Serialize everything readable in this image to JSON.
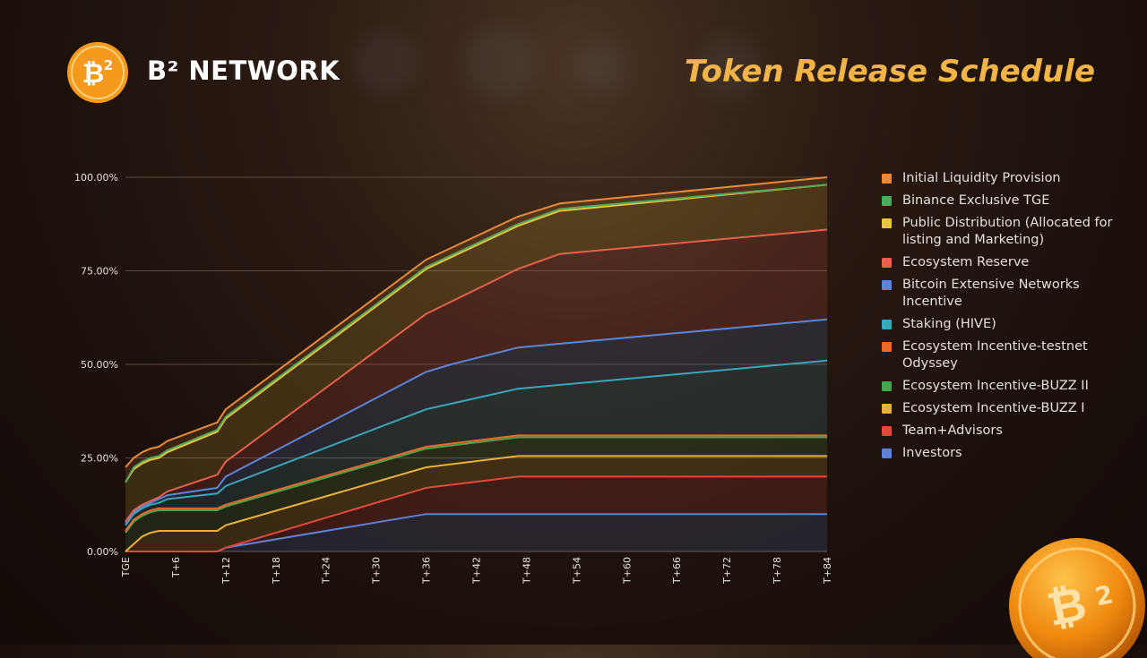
{
  "header": {
    "brand": "B² NETWORK",
    "title": "Token Release Schedule"
  },
  "colors": {
    "title": "#f3b447",
    "coin": "#f59a1c"
  },
  "chart_data": {
    "type": "area",
    "stacked": true,
    "title": "Token Release Schedule",
    "xlabel": "",
    "ylabel": "",
    "x_range": [
      0,
      84
    ],
    "ylim": [
      0,
      100
    ],
    "grid": true,
    "legend_position": "right",
    "y_ticks": [
      "0.00%",
      "25.00%",
      "50.00%",
      "75.00%",
      "100.00%"
    ],
    "x_ticks": [
      {
        "x": 0,
        "label": "TGE"
      },
      {
        "x": 6,
        "label": "T+6"
      },
      {
        "x": 12,
        "label": "T+12"
      },
      {
        "x": 18,
        "label": "T+18"
      },
      {
        "x": 24,
        "label": "T+24"
      },
      {
        "x": 30,
        "label": "T+30"
      },
      {
        "x": 36,
        "label": "T+36"
      },
      {
        "x": 42,
        "label": "T+42"
      },
      {
        "x": 48,
        "label": "T+48"
      },
      {
        "x": 54,
        "label": "T+54"
      },
      {
        "x": 60,
        "label": "T+60"
      },
      {
        "x": 66,
        "label": "T+66"
      },
      {
        "x": 72,
        "label": "T+72"
      },
      {
        "x": 78,
        "label": "T+78"
      },
      {
        "x": 84,
        "label": "T+84"
      }
    ],
    "series": [
      {
        "name": "Investors",
        "color": "#5b82d6",
        "points": [
          [
            0,
            0
          ],
          [
            11,
            0
          ],
          [
            12,
            1
          ],
          [
            36,
            10
          ],
          [
            84,
            10
          ]
        ]
      },
      {
        "name": "Team+Advisors",
        "color": "#e04a3c",
        "points": [
          [
            0,
            0
          ],
          [
            11,
            0
          ],
          [
            12,
            1
          ],
          [
            36,
            17
          ],
          [
            47,
            20
          ],
          [
            84,
            20
          ]
        ]
      },
      {
        "name": "Ecosystem Incentive-BUZZ I",
        "color": "#e8b23a",
        "points": [
          [
            0,
            0
          ],
          [
            1,
            2
          ],
          [
            2,
            4
          ],
          [
            3,
            5
          ],
          [
            4,
            5.5
          ],
          [
            11,
            5.5
          ],
          [
            12,
            7
          ],
          [
            36,
            22.5
          ],
          [
            47,
            25.5
          ],
          [
            84,
            25.5
          ]
        ]
      },
      {
        "name": "Ecosystem Incentive-BUZZ II",
        "color": "#4ea34f",
        "points": [
          [
            0,
            5
          ],
          [
            1,
            8
          ],
          [
            2,
            9.5
          ],
          [
            3,
            10.5
          ],
          [
            4,
            11
          ],
          [
            11,
            11
          ],
          [
            12,
            12
          ],
          [
            36,
            27.5
          ],
          [
            47,
            30.5
          ],
          [
            84,
            30.5
          ]
        ]
      },
      {
        "name": "Ecosystem Incentive-testnet Odyssey",
        "color": "#ea6a2c",
        "points": [
          [
            0,
            5.5
          ],
          [
            1,
            8.5
          ],
          [
            2,
            10
          ],
          [
            3,
            11
          ],
          [
            4,
            11.5
          ],
          [
            11,
            11.5
          ],
          [
            12,
            12.5
          ],
          [
            36,
            28
          ],
          [
            47,
            31
          ],
          [
            84,
            31
          ]
        ]
      },
      {
        "name": "Staking (HIVE)",
        "color": "#3aa6b9",
        "points": [
          [
            0,
            7
          ],
          [
            1,
            10
          ],
          [
            2,
            11.5
          ],
          [
            3,
            12.5
          ],
          [
            4,
            13
          ],
          [
            5,
            14
          ],
          [
            11,
            15.5
          ],
          [
            12,
            17.5
          ],
          [
            36,
            38
          ],
          [
            47,
            43.5
          ],
          [
            84,
            51
          ]
        ]
      },
      {
        "name": "Bitcoin Extensive Networks Incentive",
        "color": "#5a86dc",
        "points": [
          [
            0,
            7.5
          ],
          [
            1,
            10.5
          ],
          [
            2,
            12
          ],
          [
            3,
            13
          ],
          [
            4,
            14
          ],
          [
            5,
            15
          ],
          [
            11,
            17
          ],
          [
            12,
            20
          ],
          [
            36,
            48
          ],
          [
            39,
            50
          ],
          [
            47,
            54.5
          ],
          [
            84,
            62
          ]
        ]
      },
      {
        "name": "Ecosystem Reserve",
        "color": "#e6604e",
        "points": [
          [
            0,
            8
          ],
          [
            1,
            11
          ],
          [
            2,
            12.5
          ],
          [
            3,
            13.5
          ],
          [
            4,
            14.5
          ],
          [
            5,
            16
          ],
          [
            11,
            20.5
          ],
          [
            12,
            24
          ],
          [
            36,
            63.5
          ],
          [
            47,
            75.5
          ],
          [
            52,
            79.5
          ],
          [
            84,
            86
          ]
        ]
      },
      {
        "name": "Public Distribution (Allocated for listing and Marketing)",
        "color": "#f0c43a",
        "points": [
          [
            0,
            18.5
          ],
          [
            1,
            22
          ],
          [
            2,
            23.5
          ],
          [
            3,
            24.5
          ],
          [
            4,
            25
          ],
          [
            5,
            26.5
          ],
          [
            11,
            32
          ],
          [
            12,
            35.5
          ],
          [
            36,
            75.5
          ],
          [
            47,
            87
          ],
          [
            52,
            91
          ],
          [
            84,
            98
          ]
        ]
      },
      {
        "name": "Binance Exclusive TGE",
        "color": "#54a85a",
        "points": [
          [
            0,
            18.5
          ],
          [
            1,
            22.5
          ],
          [
            2,
            24
          ],
          [
            3,
            25
          ],
          [
            4,
            25.5
          ],
          [
            5,
            27
          ],
          [
            11,
            32.5
          ],
          [
            12,
            36
          ],
          [
            36,
            76
          ],
          [
            47,
            87.5
          ],
          [
            52,
            91.5
          ],
          [
            84,
            98
          ]
        ]
      },
      {
        "name": "Initial Liquidity Provision",
        "color": "#e88a3a",
        "points": [
          [
            0,
            22.5
          ],
          [
            1,
            25
          ],
          [
            2,
            26.5
          ],
          [
            3,
            27.5
          ],
          [
            4,
            28
          ],
          [
            5,
            29.5
          ],
          [
            11,
            34.5
          ],
          [
            12,
            38
          ],
          [
            36,
            78
          ],
          [
            47,
            89.5
          ],
          [
            52,
            93
          ],
          [
            84,
            100
          ]
        ]
      }
    ],
    "legend_order": [
      "Initial Liquidity Provision",
      "Binance Exclusive TGE",
      "Public Distribution (Allocated for listing and Marketing)",
      "Ecosystem Reserve",
      "Bitcoin Extensive Networks Incentive",
      "Staking (HIVE)",
      "Ecosystem Incentive-testnet Odyssey",
      "Ecosystem Incentive-BUZZ II",
      "Ecosystem Incentive-BUZZ I",
      "Team+Advisors",
      "Investors"
    ]
  }
}
